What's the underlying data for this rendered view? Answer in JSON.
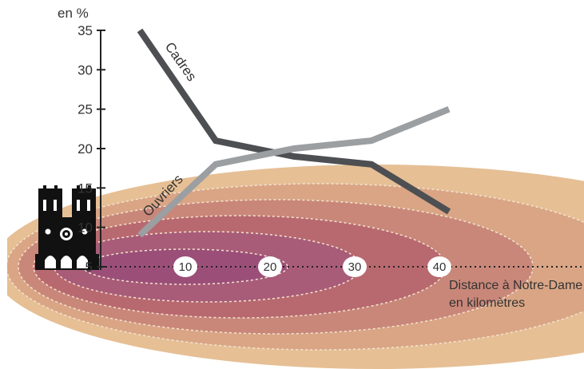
{
  "chart_data": {
    "type": "line",
    "unit_label": "en %",
    "y_ticks": [
      "5",
      "10",
      "15",
      "20",
      "25",
      "30",
      "35"
    ],
    "ylim": [
      5,
      35
    ],
    "x": [
      0,
      10,
      20,
      30,
      40
    ],
    "distance_markers": [
      "10",
      "20",
      "30",
      "40"
    ],
    "xlabel_lines": [
      "Distance à Notre-Dame",
      "en kilomètres"
    ],
    "series": [
      {
        "name": "Cadres",
        "values": [
          35,
          21,
          19,
          18,
          12
        ],
        "color": "#4d4f52"
      },
      {
        "name": "Ouvriers",
        "values": [
          9,
          18,
          20,
          21,
          25
        ],
        "color": "#9c9fa1"
      }
    ],
    "ring_colors": [
      "#e6bf95",
      "#d9a585",
      "#c98779",
      "#b8696f",
      "#a85c78",
      "#9b4f78"
    ],
    "grid": false,
    "legend": "labels on lines"
  },
  "icon": "notre-dame-cathedral-icon"
}
